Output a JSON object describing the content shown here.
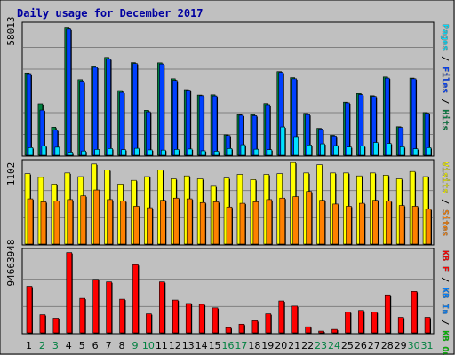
{
  "chart_data": {
    "type": "bar",
    "title": "Daily usage for December 2017",
    "categories": [
      "1",
      "2",
      "3",
      "4",
      "5",
      "6",
      "7",
      "8",
      "9",
      "10",
      "11",
      "12",
      "13",
      "14",
      "15",
      "16",
      "17",
      "18",
      "19",
      "20",
      "21",
      "22",
      "23",
      "24",
      "25",
      "26",
      "27",
      "28",
      "29",
      "30",
      "31"
    ],
    "weekend_days": [
      2,
      3,
      9,
      10,
      16,
      17,
      23,
      24,
      30,
      31
    ],
    "colors": {
      "pages": "#00e0ff",
      "files": "#0040ff",
      "hits": "#008040",
      "visits": "#ffff00",
      "sites": "#ff8000",
      "kb_in": "#0080ff",
      "kb_out": "#00c000",
      "kb_f": "#ff0000",
      "weekday_label": "#000000",
      "weekend_label": "#008040"
    },
    "panels": [
      {
        "name": "traffic",
        "ymax_label": "58013",
        "ylim": [
          0,
          58013
        ],
        "side_label": [
          {
            "text": "Pages",
            "color": "#00e0ff"
          },
          {
            "text": " / ",
            "color": "#000000"
          },
          {
            "text": "Files",
            "color": "#0040ff"
          },
          {
            "text": " / ",
            "color": "#000000"
          },
          {
            "text": "Hits",
            "color": "#008040"
          }
        ],
        "series": [
          {
            "name": "Hits",
            "color": "#008040",
            "values": [
              36600,
              22900,
              12500,
              57000,
              33600,
              39700,
              43500,
              28800,
              41200,
              20000,
              41100,
              34000,
              29200,
              26800,
              26900,
              9100,
              18000,
              18000,
              23000,
              37200,
              34500,
              18600,
              12000,
              8900,
              23600,
              27500,
              26500,
              34800,
              12700,
              34300,
              19000
            ]
          },
          {
            "name": "Files",
            "color": "#0040ff",
            "values": [
              36300,
              20100,
              11200,
              56100,
              33000,
              39100,
              42800,
              28000,
              40800,
              19300,
              40600,
              33300,
              29000,
              26500,
              26400,
              8800,
              17800,
              17600,
              22500,
              36900,
              34000,
              18100,
              11700,
              8600,
              23300,
              27000,
              26200,
              34300,
              12400,
              34000,
              18700
            ]
          },
          {
            "name": "Pages",
            "color": "#00e0ff",
            "values": [
              3400,
              4200,
              3600,
              1400,
              1900,
              2600,
              3000,
              2500,
              3100,
              2400,
              2300,
              2600,
              2800,
              2000,
              1800,
              3000,
              4700,
              2700,
              2500,
              12600,
              8300,
              4600,
              5100,
              4300,
              3700,
              4100,
              5700,
              5300,
              3800,
              2900,
              3400
            ]
          }
        ]
      },
      {
        "name": "visits",
        "ymax_label": "1102",
        "ylim": [
          0,
          1102
        ],
        "side_label": [
          {
            "text": "Visits",
            "color": "#ffff00"
          },
          {
            "text": " / ",
            "color": "#000000"
          },
          {
            "text": "Sites",
            "color": "#ff8000"
          }
        ],
        "series": [
          {
            "name": "Visits",
            "color": "#ffff00",
            "values": [
              950,
              900,
              810,
              960,
              910,
              1080,
              1000,
              810,
              860,
              910,
              1000,
              880,
              920,
              880,
              780,
              890,
              940,
              870,
              940,
              950,
              1100,
              960,
              1070,
              960,
              960,
              920,
              960,
              930,
              880,
              980,
              910
            ]
          },
          {
            "name": "Sites",
            "color": "#ff8000",
            "values": [
              610,
              570,
              580,
              600,
              650,
              730,
              600,
              580,
              510,
              490,
              590,
              620,
              610,
              560,
              570,
              500,
              550,
              570,
              600,
              620,
              640,
              710,
              590,
              540,
              510,
              550,
              590,
              580,
              520,
              510,
              470
            ]
          }
        ]
      },
      {
        "name": "kbytes",
        "ymax_label": "94663948",
        "ylim": [
          0,
          94663948
        ],
        "side_label": [
          {
            "text": "KB F",
            "color": "#ff0000"
          },
          {
            "text": " / ",
            "color": "#000000"
          },
          {
            "text": "KB In",
            "color": "#0080ff"
          },
          {
            "text": " / ",
            "color": "#000000"
          },
          {
            "text": "KB Out",
            "color": "#00c000"
          }
        ],
        "series": [
          {
            "name": "KB F",
            "color": "#ff0000",
            "values": [
              54000000,
              21000000,
              17000000,
              93000000,
              40000000,
              62000000,
              59000000,
              39000000,
              79000000,
              22000000,
              59000000,
              38000000,
              34000000,
              33000000,
              29000000,
              6000000,
              10000000,
              14000000,
              22000000,
              37000000,
              31000000,
              7000000,
              2000000,
              4000000,
              24000000,
              26000000,
              24000000,
              44000000,
              18000000,
              48000000,
              18000000
            ]
          }
        ]
      }
    ]
  }
}
